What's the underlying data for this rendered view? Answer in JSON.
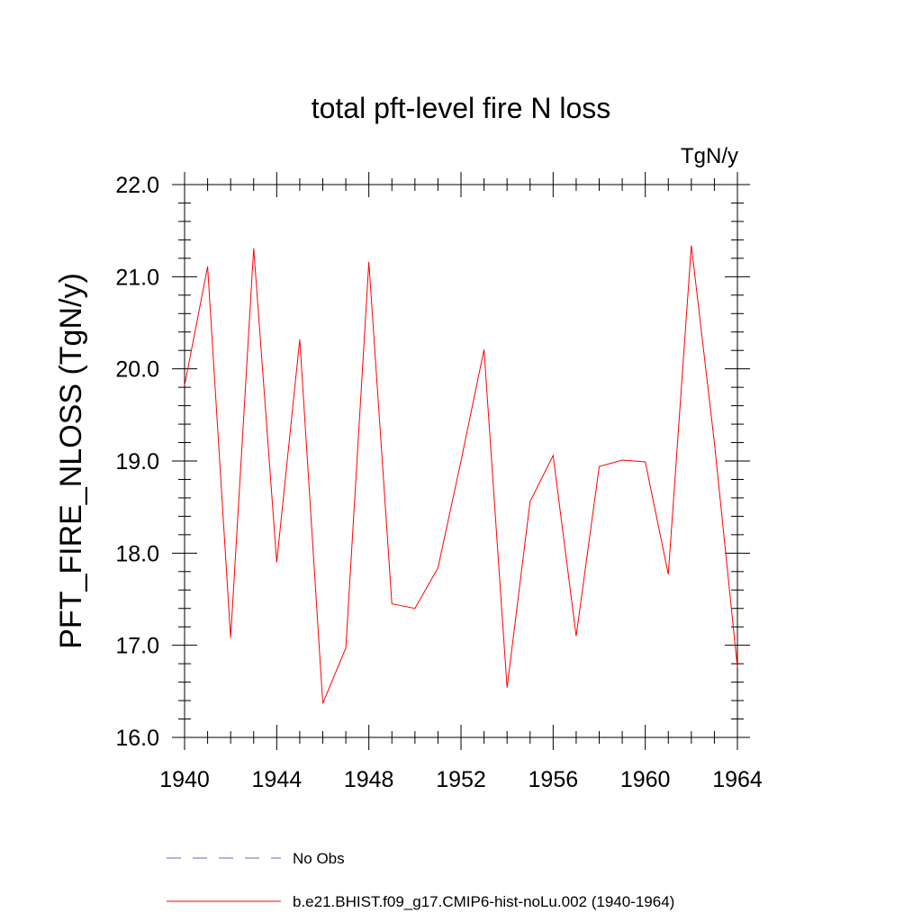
{
  "chart_data": {
    "type": "line",
    "title": "total pft-level fire N loss",
    "units_label": "TgN/y",
    "ylabel": "PFT_FIRE_NLOSS  (TgN/y)",
    "xlabel": "",
    "xlim": [
      1940,
      1964
    ],
    "ylim": [
      16.0,
      22.0
    ],
    "x_ticks": [
      1940,
      1944,
      1948,
      1952,
      1956,
      1960,
      1964
    ],
    "x_tick_labels": [
      "1940",
      "1944",
      "1948",
      "1952",
      "1956",
      "1960",
      "1964"
    ],
    "y_ticks": [
      16.0,
      17.0,
      18.0,
      19.0,
      20.0,
      21.0,
      22.0
    ],
    "y_tick_labels": [
      "16.0",
      "17.0",
      "18.0",
      "19.0",
      "20.0",
      "21.0",
      "22.0"
    ],
    "grid": false,
    "legend_position": "bottom",
    "series": [
      {
        "name": "b.e21.BHIST.f09_g17.CMIP6-hist-noLu.002 (1940-1964)",
        "color": "#ff0000",
        "style": "solid",
        "x": [
          1940,
          1941,
          1942,
          1943,
          1944,
          1945,
          1946,
          1947,
          1948,
          1949,
          1950,
          1951,
          1952,
          1953,
          1954,
          1955,
          1956,
          1957,
          1958,
          1959,
          1960,
          1961,
          1962,
          1963,
          1964
        ],
        "values": [
          19.82,
          21.11,
          17.08,
          21.31,
          17.9,
          20.32,
          16.37,
          16.97,
          21.16,
          17.45,
          17.4,
          17.84,
          19.0,
          20.21,
          16.54,
          18.56,
          19.06,
          17.1,
          18.94,
          19.01,
          18.99,
          17.77,
          21.34,
          19.2,
          16.76
        ]
      }
    ],
    "legend_entries": [
      {
        "name": "No Obs",
        "color": "#6a6ab0",
        "style": "dashed"
      },
      {
        "name": "b.e21.BHIST.f09_g17.CMIP6-hist-noLu.002 (1940-1964)",
        "color": "#ff0000",
        "style": "solid"
      }
    ]
  }
}
